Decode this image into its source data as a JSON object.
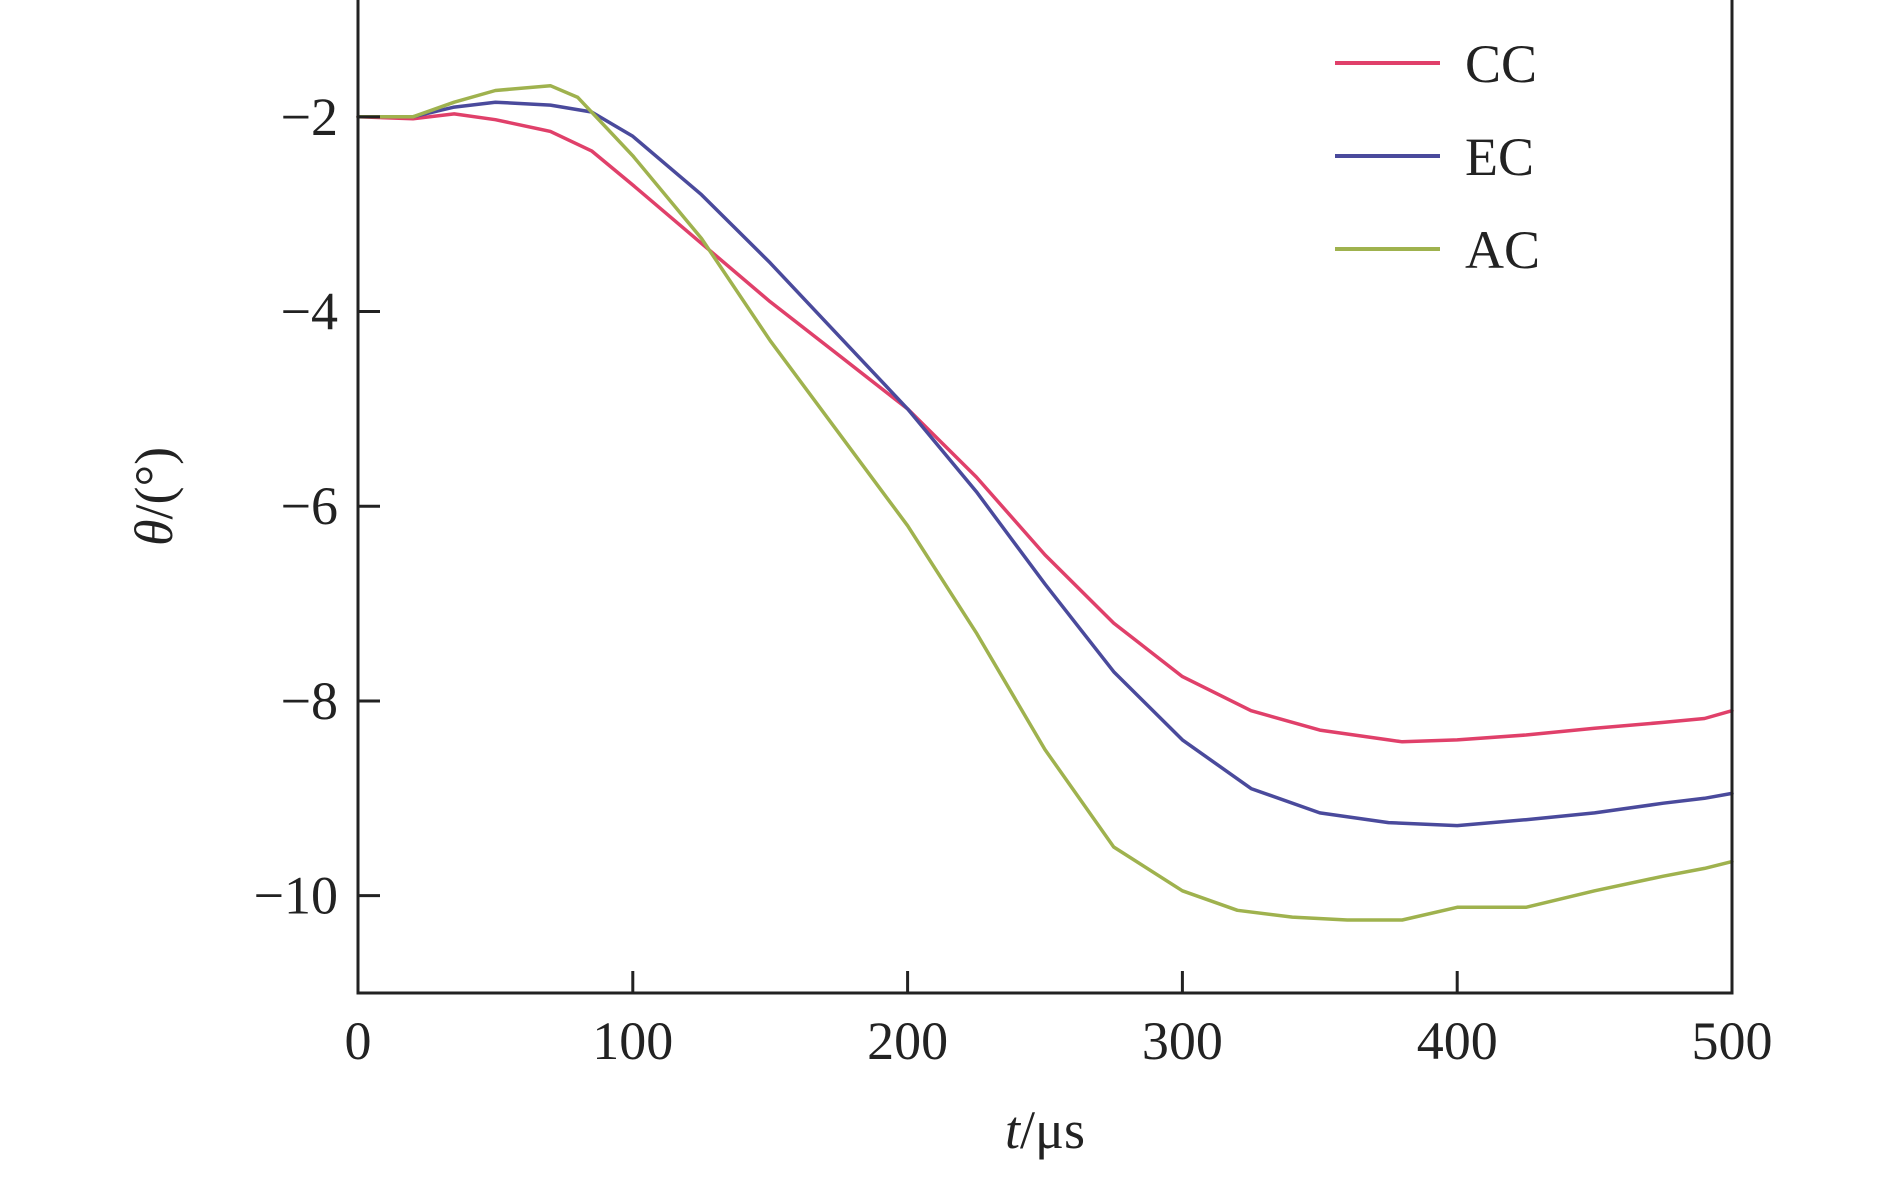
{
  "chart_data": {
    "type": "line",
    "title": "",
    "xlabel": "t/μs",
    "xlabel_var": "t",
    "xlabel_unit": "/μs",
    "ylabel": "θ/(°)",
    "ylabel_var": "θ",
    "ylabel_unit": "/(°)",
    "xlim": [
      0,
      500
    ],
    "ylim": [
      -11,
      -0.8
    ],
    "xticks": [
      0,
      100,
      200,
      300,
      400,
      500
    ],
    "yticks": [
      -2,
      -4,
      -6,
      -8,
      -10
    ],
    "xtick_labels": [
      "0",
      "100",
      "200",
      "300",
      "400",
      "500"
    ],
    "ytick_labels": [
      "−2",
      "−4",
      "−6",
      "−8",
      "−10"
    ],
    "grid": false,
    "legend_position": "top-right",
    "series": [
      {
        "name": "CC",
        "color": "#e0406a",
        "x": [
          0,
          20,
          35,
          50,
          70,
          85,
          100,
          125,
          150,
          175,
          200,
          225,
          250,
          275,
          300,
          325,
          350,
          375,
          380,
          400,
          425,
          450,
          475,
          490,
          500
        ],
        "y": [
          -2.0,
          -2.02,
          -1.97,
          -2.03,
          -2.15,
          -2.35,
          -2.7,
          -3.3,
          -3.9,
          -4.45,
          -5.0,
          -5.7,
          -6.5,
          -7.2,
          -7.75,
          -8.1,
          -8.3,
          -8.4,
          -8.42,
          -8.4,
          -8.35,
          -8.28,
          -8.22,
          -8.18,
          -8.1
        ]
      },
      {
        "name": "EC",
        "color": "#4a4a9c",
        "x": [
          0,
          20,
          35,
          50,
          70,
          85,
          100,
          125,
          150,
          175,
          200,
          225,
          250,
          275,
          300,
          325,
          350,
          375,
          400,
          425,
          450,
          475,
          490,
          500
        ],
        "y": [
          -2.0,
          -2.0,
          -1.9,
          -1.85,
          -1.88,
          -1.95,
          -2.2,
          -2.8,
          -3.5,
          -4.25,
          -5.0,
          -5.85,
          -6.8,
          -7.7,
          -8.4,
          -8.9,
          -9.15,
          -9.25,
          -9.28,
          -9.22,
          -9.15,
          -9.05,
          -9.0,
          -8.95
        ]
      },
      {
        "name": "AC",
        "color": "#9fb24e",
        "x": [
          0,
          20,
          35,
          50,
          70,
          80,
          100,
          125,
          150,
          175,
          200,
          225,
          250,
          275,
          300,
          320,
          340,
          360,
          380,
          400,
          425,
          450,
          475,
          490,
          500
        ],
        "y": [
          -2.0,
          -2.0,
          -1.85,
          -1.73,
          -1.68,
          -1.8,
          -2.4,
          -3.25,
          -4.3,
          -5.25,
          -6.2,
          -7.3,
          -8.5,
          -9.5,
          -9.95,
          -10.15,
          -10.22,
          -10.25,
          -10.25,
          -10.12,
          -10.12,
          -9.95,
          -9.8,
          -9.72,
          -9.65
        ]
      }
    ]
  }
}
